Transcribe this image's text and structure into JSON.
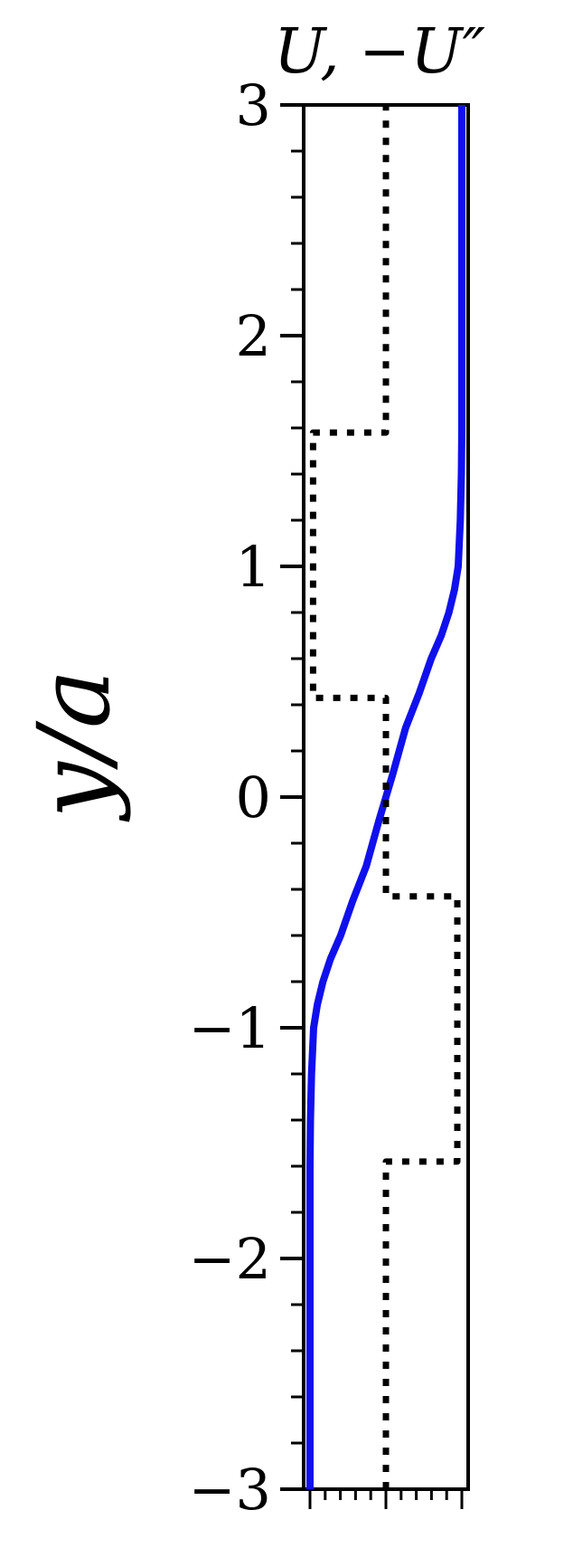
{
  "chart_data": {
    "type": "line",
    "title": "U, −U″",
    "ylabel": "y/a",
    "xlabel": "",
    "ylim": [
      -3,
      3
    ],
    "xlim": [
      -0.5,
      0.5
    ],
    "yticks": [
      -3,
      -2,
      -1,
      0,
      1,
      2,
      3
    ],
    "ytick_labels": [
      "−3",
      "−2",
      "−1",
      "0",
      "1",
      "2",
      "3"
    ],
    "grid": false,
    "legend": "none",
    "series": [
      {
        "style": "solid",
        "color": "#1010ee",
        "x": [
          -0.5,
          -0.5,
          -0.497,
          -0.49,
          -0.476,
          -0.452,
          -0.415,
          -0.364,
          -0.298,
          -0.219,
          -0.13,
          -0.045,
          0,
          0.045,
          0.13,
          0.219,
          0.298,
          0.364,
          0.415,
          0.452,
          0.476,
          0.49,
          0.497,
          0.5,
          0.5
        ],
        "y": [
          -3.0,
          -1.6,
          -1.4,
          -1.2,
          -1.0,
          -0.9,
          -0.8,
          -0.7,
          -0.6,
          -0.45,
          -0.3,
          -0.1,
          0.0,
          0.1,
          0.3,
          0.45,
          0.6,
          0.7,
          0.8,
          0.9,
          1.0,
          1.2,
          1.4,
          1.6,
          3.0
        ]
      },
      {
        "style": "dotted",
        "color": "#000000",
        "x": [
          0,
          0,
          0.47,
          0.47,
          0.0,
          0.0,
          -0.48,
          -0.48,
          0.0,
          0.0
        ],
        "y": [
          -3.0,
          -1.58,
          -1.58,
          -0.43,
          -0.43,
          0.43,
          0.43,
          1.58,
          1.58,
          3.0
        ]
      }
    ]
  }
}
